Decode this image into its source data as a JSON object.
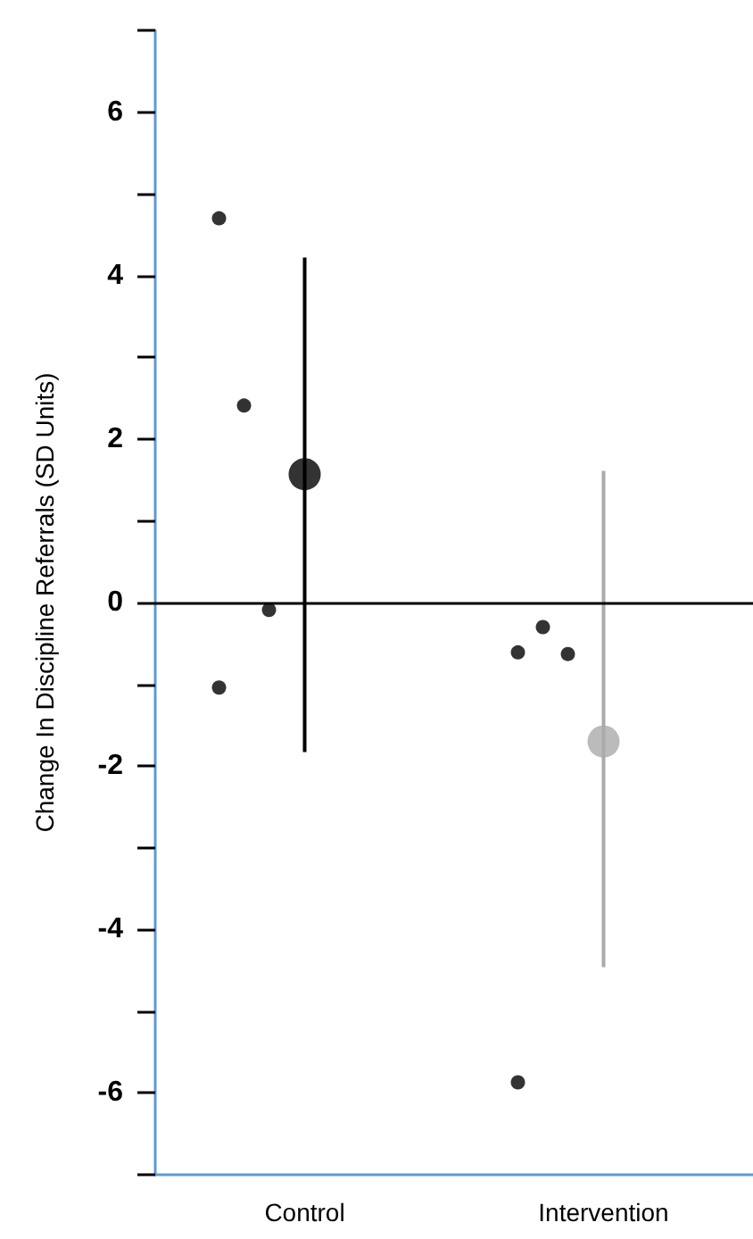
{
  "chart_data": {
    "type": "scatter",
    "ylabel": "Change In Discipline Referrals (SD Units)",
    "categories": [
      "Control",
      "Intervention"
    ],
    "ylim": [
      -7,
      7
    ],
    "yticks": [
      {
        "value": -7,
        "label": null
      },
      -6,
      {
        "value": -5,
        "label": null
      },
      -4,
      {
        "value": -3,
        "label": null
      },
      -2,
      {
        "value": -1,
        "label": null
      },
      0,
      {
        "value": 1,
        "label": null
      },
      2,
      {
        "value": 3,
        "label": null
      },
      4,
      {
        "value": 5,
        "label": null
      },
      6,
      {
        "value": 7,
        "label": null
      }
    ],
    "grid": false,
    "marker": "circle",
    "ref_lines": [
      {
        "axis": "y",
        "value": 0,
        "color": "#000000"
      }
    ],
    "series": [
      {
        "color": "#000000",
        "x": [
          "Control",
          "Control",
          "Control",
          "Control",
          "Intervention",
          "Intervention",
          "Intervention",
          "Intervention"
        ],
        "values": [
          4.7,
          2.41,
          -0.09,
          -1.04,
          -0.61,
          -0.3,
          -0.63,
          -5.87
        ]
      },
      {
        "x": [
          "Control",
          "Intervention"
        ],
        "values": [
          1.57,
          -1.7
        ],
        "colors": [
          "#000000",
          "#aaaaaa"
        ],
        "errors": [
          [
            -1.83,
            4.22
          ],
          [
            -4.46,
            1.61
          ]
        ]
      }
    ]
  }
}
